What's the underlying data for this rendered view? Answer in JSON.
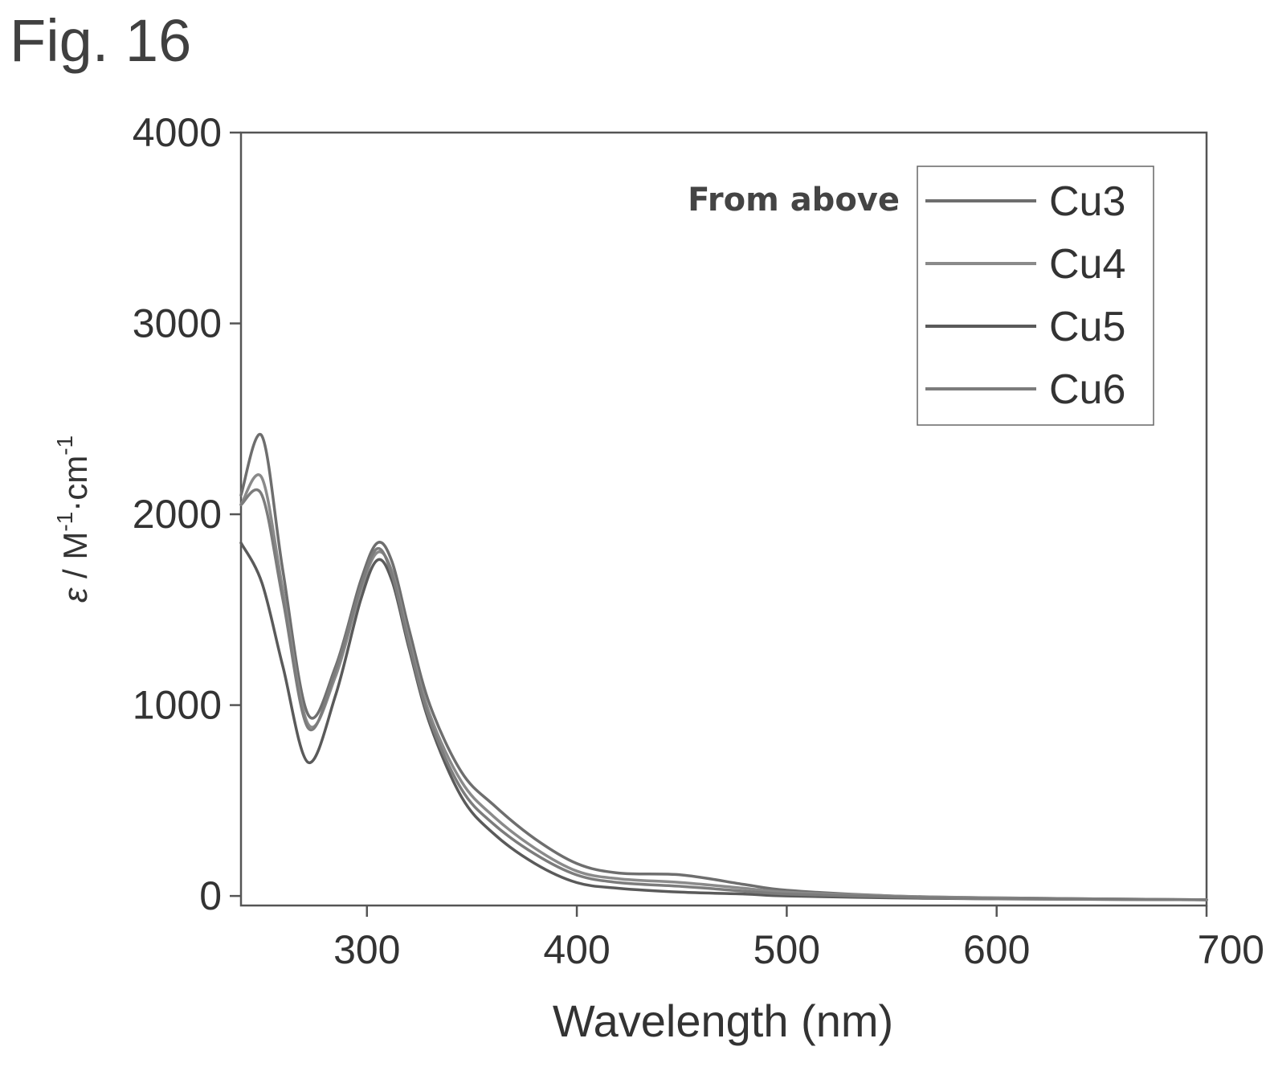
{
  "figure_label": "Fig. 16",
  "chart_data": {
    "type": "line",
    "xlabel": "Wavelength (nm)",
    "ylabel": {
      "symbol": "ε",
      "sep": " / M",
      "sup1": "-1",
      "mid": "·cm",
      "sup2": "-1"
    },
    "xlim": [
      240,
      700
    ],
    "ylim": [
      -50,
      4000
    ],
    "xticks": [
      300,
      400,
      500,
      600,
      700
    ],
    "yticks": [
      0,
      1000,
      2000,
      3000,
      4000
    ],
    "grid": false,
    "legend_position": "top-right",
    "legend_note": "From above",
    "series": [
      {
        "name": "Cu3",
        "color": "#6e6e6e",
        "x": [
          240,
          250,
          260,
          272,
          285,
          297,
          305,
          312,
          320,
          330,
          345,
          360,
          380,
          400,
          420,
          450,
          480,
          500,
          550,
          600,
          700
        ],
        "y": [
          2100,
          2410,
          1700,
          950,
          1200,
          1650,
          1850,
          1750,
          1400,
          1000,
          650,
          480,
          300,
          170,
          120,
          110,
          60,
          30,
          0,
          -10,
          -20
        ]
      },
      {
        "name": "Cu4",
        "color": "#8a8a8a",
        "x": [
          240,
          250,
          260,
          272,
          285,
          297,
          305,
          312,
          320,
          330,
          345,
          360,
          380,
          400,
          420,
          450,
          480,
          500,
          550,
          600,
          700
        ],
        "y": [
          2050,
          2190,
          1600,
          900,
          1150,
          1600,
          1800,
          1700,
          1350,
          950,
          600,
          420,
          250,
          130,
          90,
          70,
          40,
          20,
          0,
          -10,
          -20
        ]
      },
      {
        "name": "Cu5",
        "color": "#5a5a5a",
        "x": [
          240,
          250,
          260,
          272,
          285,
          297,
          305,
          312,
          320,
          330,
          345,
          360,
          380,
          400,
          420,
          450,
          480,
          500,
          550,
          600,
          700
        ],
        "y": [
          1850,
          1640,
          1200,
          700,
          1050,
          1550,
          1760,
          1650,
          1300,
          900,
          520,
          330,
          170,
          70,
          40,
          20,
          10,
          0,
          -10,
          -15,
          -20
        ]
      },
      {
        "name": "Cu6",
        "color": "#7c7c7c",
        "x": [
          240,
          250,
          260,
          272,
          285,
          297,
          305,
          312,
          320,
          330,
          345,
          360,
          380,
          400,
          420,
          450,
          480,
          500,
          550,
          600,
          700
        ],
        "y": [
          2050,
          2100,
          1550,
          880,
          1180,
          1620,
          1820,
          1680,
          1320,
          920,
          560,
          380,
          220,
          110,
          70,
          50,
          25,
          10,
          -5,
          -15,
          -20
        ]
      }
    ]
  }
}
